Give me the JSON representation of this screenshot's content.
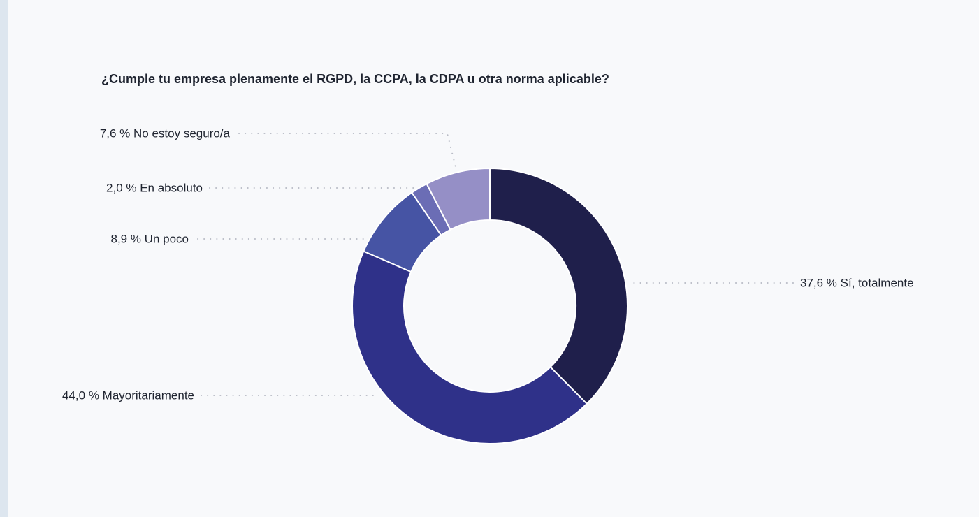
{
  "chart_data": {
    "type": "pie",
    "title": "¿Cumple tu empresa plenamente el RGPD, la CCPA, la CDPA u otra norma aplicable?",
    "donut": true,
    "slices": [
      {
        "label": "37,6 % Sí, totalmente",
        "category": "Sí, totalmente",
        "value": 37.6,
        "color": "#1f1f4b"
      },
      {
        "label": "44,0 % Mayoritariamente",
        "category": "Mayoritariamente",
        "value": 44.0,
        "color": "#2f3189"
      },
      {
        "label": "8,9 % Un poco",
        "category": "Un poco",
        "value": 8.9,
        "color": "#4654a4"
      },
      {
        "label": "2,0 % En absoluto",
        "category": "En absoluto",
        "value": 2.0,
        "color": "#6b6db5"
      },
      {
        "label": "7,6 % No estoy seguro/a",
        "category": "No estoy seguro/a",
        "value": 7.6,
        "color": "#958fc6"
      }
    ],
    "leader_line_color": "#b9bcc6"
  }
}
